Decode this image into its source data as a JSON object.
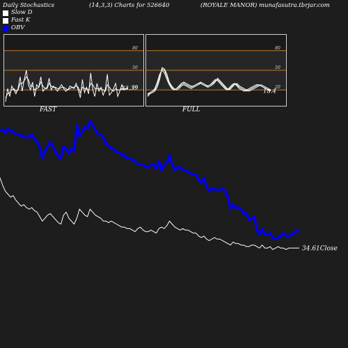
{
  "header": {
    "title": "Daily Stochastics",
    "params": "(14,3,3) Charts for 526640",
    "company": "(ROYALE MANOR) munafasutra.tbrjar.com"
  },
  "legend": [
    {
      "label": "Slow  D",
      "color": "#ffffff"
    },
    {
      "label": "Fast K",
      "color": "#ffffff"
    },
    {
      "label": "OBV",
      "color": "#0000ee"
    }
  ],
  "colors": {
    "obv": "#0000ee",
    "close": "#ffffff",
    "stoch": "#ffffff",
    "level": "#c07a2a"
  },
  "chart_data": [
    {
      "type": "line",
      "title": "FAST",
      "ylim": [
        0,
        100
      ],
      "levels": [
        20,
        50,
        80
      ],
      "level_labels": [
        "20",
        "50",
        "80"
      ],
      "last_label": "23.39",
      "series": [
        {
          "name": "Fast K",
          "values": [
            2,
            22,
            10,
            26,
            20,
            14,
            22,
            40,
            18,
            36,
            50,
            28,
            20,
            32,
            10,
            28,
            24,
            40,
            18,
            22,
            24,
            38,
            20,
            26,
            22,
            18,
            24,
            28,
            22,
            18,
            20,
            26,
            24,
            22,
            30,
            20,
            8,
            36,
            16,
            24,
            14,
            46,
            20,
            10,
            30,
            18,
            24,
            12,
            20,
            44,
            12,
            16,
            22,
            30,
            10,
            18,
            28,
            20,
            22,
            23.39
          ]
        },
        {
          "name": "Slow  D",
          "values": [
            8,
            14,
            16,
            20,
            22,
            18,
            20,
            30,
            30,
            34,
            40,
            36,
            26,
            26,
            20,
            22,
            24,
            32,
            26,
            22,
            22,
            30,
            26,
            24,
            24,
            22,
            22,
            24,
            24,
            22,
            20,
            22,
            24,
            24,
            26,
            24,
            16,
            24,
            22,
            22,
            20,
            30,
            28,
            22,
            22,
            22,
            22,
            20,
            18,
            28,
            24,
            20,
            18,
            22,
            20,
            20,
            22,
            22,
            22,
            22
          ]
        }
      ]
    },
    {
      "type": "line",
      "title": "FULL",
      "ylim": [
        0,
        100
      ],
      "levels": [
        20,
        50,
        80
      ],
      "level_labels": [
        "20",
        "50",
        "80"
      ],
      "last_label": "18.4",
      "series": [
        {
          "name": "Fast K",
          "values": [
            12,
            16,
            18,
            20,
            28,
            40,
            52,
            50,
            40,
            30,
            24,
            20,
            22,
            24,
            28,
            30,
            28,
            26,
            24,
            26,
            28,
            30,
            32,
            30,
            28,
            26,
            28,
            30,
            34,
            36,
            32,
            28,
            24,
            20,
            22,
            26,
            30,
            28,
            24,
            22,
            20,
            18,
            20,
            22,
            24,
            26,
            28,
            26,
            24,
            22,
            20,
            18.4
          ]
        },
        {
          "name": "Slow  D",
          "values": [
            14,
            16,
            18,
            22,
            32,
            44,
            50,
            46,
            36,
            28,
            22,
            20,
            22,
            26,
            30,
            32,
            30,
            28,
            26,
            26,
            28,
            30,
            30,
            28,
            26,
            26,
            28,
            32,
            36,
            34,
            30,
            26,
            22,
            20,
            24,
            28,
            30,
            26,
            22,
            20,
            18,
            20,
            22,
            24,
            26,
            28,
            28,
            26,
            24,
            22,
            20,
            20
          ]
        },
        {
          "name": "K2",
          "values": [
            10,
            14,
            16,
            18,
            24,
            36,
            54,
            52,
            44,
            32,
            26,
            22,
            20,
            22,
            26,
            28,
            26,
            24,
            22,
            24,
            26,
            28,
            30,
            28,
            26,
            24,
            26,
            28,
            32,
            38,
            34,
            30,
            26,
            22,
            20,
            24,
            28,
            30,
            26,
            24,
            22,
            20,
            18,
            20,
            22,
            24,
            26,
            28,
            26,
            24,
            22,
            19
          ]
        }
      ]
    },
    {
      "type": "line",
      "title": "",
      "ylim": [
        0,
        100
      ],
      "last_label": "34.61Close",
      "series": [
        {
          "name": "OBV",
          "values": [
            83,
            83,
            81,
            84,
            82,
            82,
            80,
            80,
            79,
            79,
            78,
            78,
            80,
            77,
            75,
            71,
            64,
            69,
            72,
            75,
            72,
            68,
            65,
            64,
            72,
            70,
            67,
            71,
            69,
            86,
            79,
            82,
            85,
            84,
            89,
            86,
            83,
            80,
            80,
            78,
            74,
            72,
            71,
            70,
            68,
            68,
            66,
            66,
            64,
            64,
            63,
            62,
            60,
            60,
            60,
            58,
            58,
            60,
            60,
            57,
            62,
            56,
            60,
            61,
            66,
            60,
            56,
            58,
            58,
            56,
            56,
            55,
            54,
            53,
            53,
            49,
            48,
            51,
            45,
            42,
            44,
            43,
            43,
            43,
            44,
            42,
            38,
            30,
            33,
            31,
            31,
            30,
            27,
            27,
            23,
            24,
            25,
            16,
            13,
            17,
            13,
            13,
            14,
            11,
            10,
            11,
            12,
            14,
            12,
            12,
            13,
            14,
            16,
            15
          ]
        },
        {
          "name": "Close",
          "values": [
            51,
            46,
            42,
            40,
            38,
            39,
            36,
            34,
            32,
            33,
            31,
            30,
            31,
            29,
            28,
            25,
            22,
            24,
            26,
            27,
            25,
            23,
            21,
            20,
            26,
            28,
            24,
            22,
            20,
            24,
            30,
            28,
            26,
            25,
            30,
            28,
            26,
            25,
            24,
            22,
            22,
            21,
            22,
            21,
            20,
            19,
            18,
            18,
            17,
            17,
            16,
            15,
            17,
            18,
            16,
            15,
            15,
            16,
            15,
            14,
            17,
            18,
            17,
            19,
            22,
            20,
            18,
            17,
            16,
            17,
            16,
            16,
            15,
            14,
            14,
            12,
            11,
            12,
            10,
            9,
            10,
            11,
            10,
            10,
            9,
            8,
            7,
            6,
            8,
            7,
            7,
            6,
            6,
            5,
            5,
            6,
            6,
            5,
            4,
            6,
            4,
            4,
            5,
            3,
            4,
            5,
            4,
            4,
            3,
            4,
            4,
            4,
            4,
            4
          ]
        }
      ]
    }
  ]
}
